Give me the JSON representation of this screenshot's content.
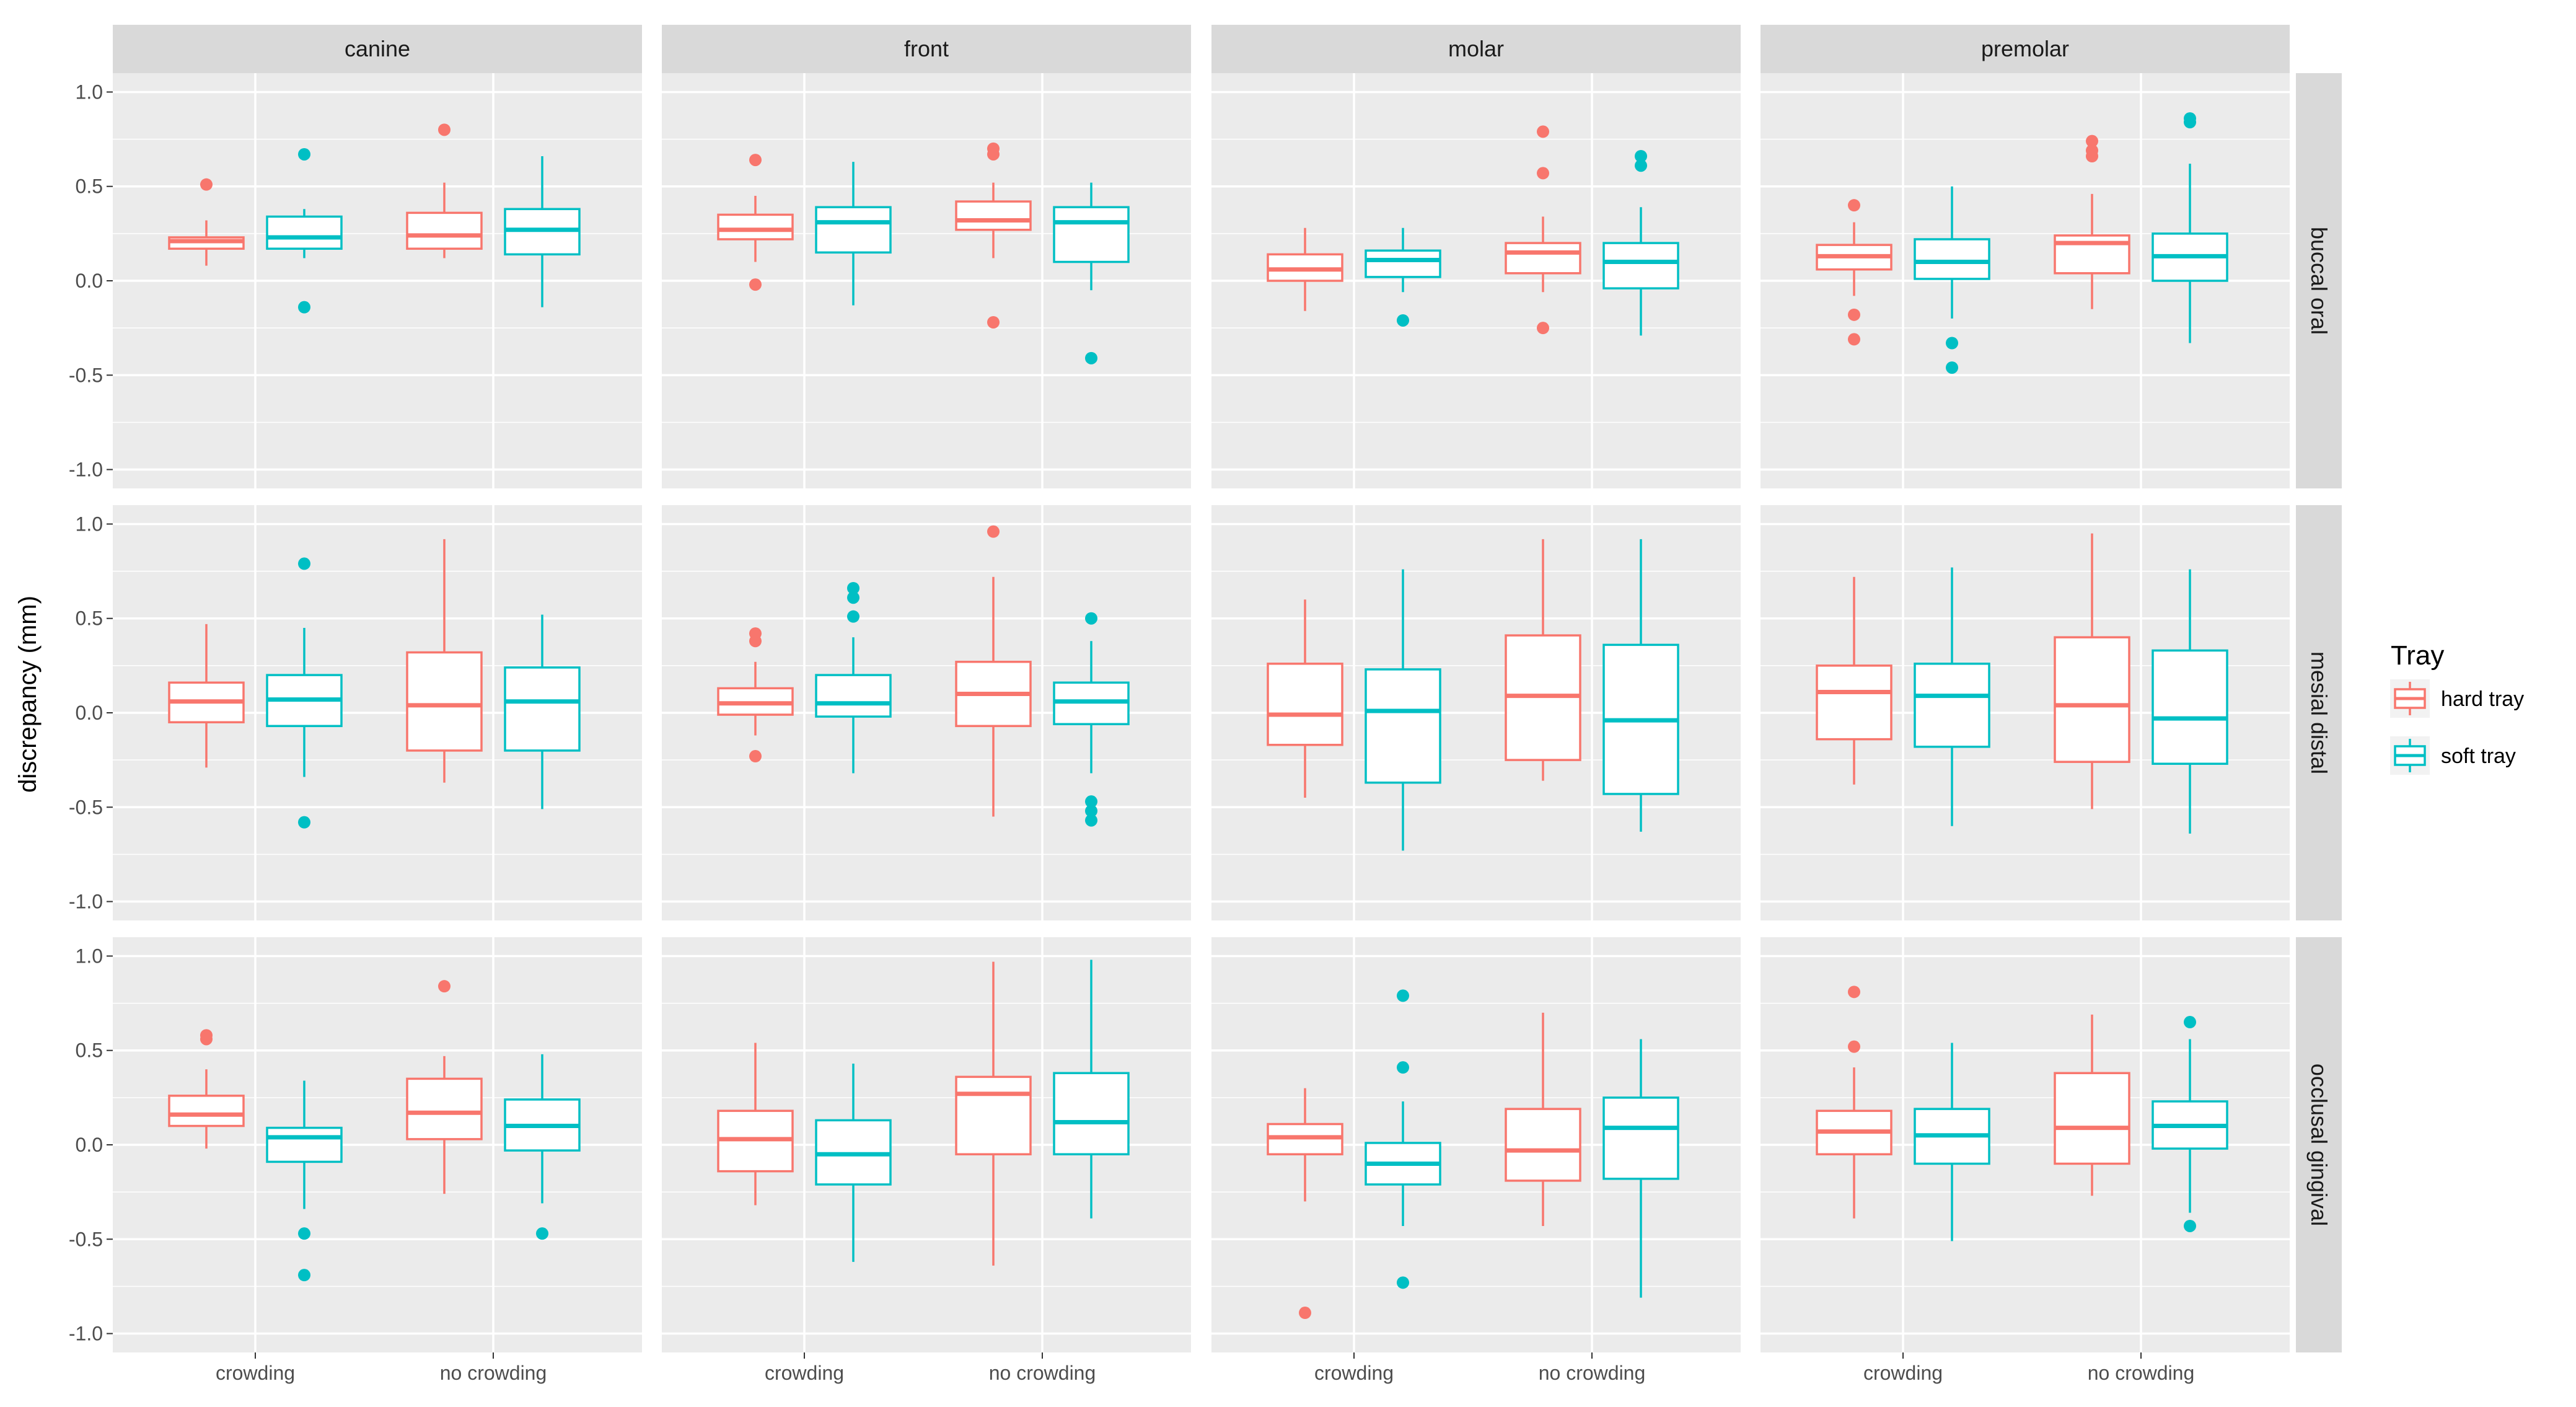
{
  "chart_data": {
    "type": "boxplot",
    "ylabel": "discrepancy (mm)",
    "xlabel": "",
    "ylim": [
      -1.1,
      1.1
    ],
    "yticks": [
      1.0,
      0.5,
      0.0,
      -0.5,
      -1.0
    ],
    "ytick_labels": [
      "1.0",
      "0.5",
      "0.0",
      "-0.5",
      "-1.0"
    ],
    "categories": [
      "crowding",
      "no crowding"
    ],
    "columns": [
      "canine",
      "front",
      "molar",
      "premolar"
    ],
    "rows": [
      "buccal oral",
      "mesial distal",
      "occlusal gingival"
    ],
    "legend": {
      "title": "Tray",
      "position": "right",
      "entries": [
        {
          "name": "hard tray",
          "color": "#F8766D"
        },
        {
          "name": "soft tray",
          "color": "#00BFC4"
        }
      ]
    },
    "colors": {
      "hard tray": "#F8766D",
      "soft tray": "#00BFC4",
      "panel": "#EBEBEB",
      "strip": "#D9D9D9",
      "grid": "#FFFFFF"
    },
    "boxes": [
      {
        "row": 0,
        "col": 0,
        "cat": 0,
        "tray": 0,
        "min": 0.08,
        "q1": 0.17,
        "median": 0.21,
        "q3": 0.23,
        "max": 0.32,
        "outliers": [
          0.51
        ]
      },
      {
        "row": 0,
        "col": 0,
        "cat": 0,
        "tray": 1,
        "min": 0.12,
        "q1": 0.17,
        "median": 0.23,
        "q3": 0.34,
        "max": 0.38,
        "outliers": [
          0.67,
          -0.14
        ]
      },
      {
        "row": 0,
        "col": 0,
        "cat": 1,
        "tray": 0,
        "min": 0.12,
        "q1": 0.17,
        "median": 0.24,
        "q3": 0.36,
        "max": 0.52,
        "outliers": [
          0.8
        ]
      },
      {
        "row": 0,
        "col": 0,
        "cat": 1,
        "tray": 1,
        "min": -0.14,
        "q1": 0.14,
        "median": 0.27,
        "q3": 0.38,
        "max": 0.66,
        "outliers": []
      },
      {
        "row": 0,
        "col": 1,
        "cat": 0,
        "tray": 0,
        "min": 0.1,
        "q1": 0.22,
        "median": 0.27,
        "q3": 0.35,
        "max": 0.45,
        "outliers": [
          0.64,
          -0.02
        ]
      },
      {
        "row": 0,
        "col": 1,
        "cat": 0,
        "tray": 1,
        "min": -0.13,
        "q1": 0.15,
        "median": 0.31,
        "q3": 0.39,
        "max": 0.63,
        "outliers": []
      },
      {
        "row": 0,
        "col": 1,
        "cat": 1,
        "tray": 0,
        "min": 0.12,
        "q1": 0.27,
        "median": 0.32,
        "q3": 0.42,
        "max": 0.52,
        "outliers": [
          0.7,
          0.67,
          -0.22
        ]
      },
      {
        "row": 0,
        "col": 1,
        "cat": 1,
        "tray": 1,
        "min": -0.05,
        "q1": 0.1,
        "median": 0.31,
        "q3": 0.39,
        "max": 0.52,
        "outliers": [
          -0.41
        ]
      },
      {
        "row": 0,
        "col": 2,
        "cat": 0,
        "tray": 0,
        "min": -0.16,
        "q1": 0.0,
        "median": 0.06,
        "q3": 0.14,
        "max": 0.28,
        "outliers": []
      },
      {
        "row": 0,
        "col": 2,
        "cat": 0,
        "tray": 1,
        "min": -0.06,
        "q1": 0.02,
        "median": 0.11,
        "q3": 0.16,
        "max": 0.28,
        "outliers": [
          -0.21
        ]
      },
      {
        "row": 0,
        "col": 2,
        "cat": 1,
        "tray": 0,
        "min": -0.06,
        "q1": 0.04,
        "median": 0.15,
        "q3": 0.2,
        "max": 0.34,
        "outliers": [
          0.79,
          0.57,
          -0.25
        ]
      },
      {
        "row": 0,
        "col": 2,
        "cat": 1,
        "tray": 1,
        "min": -0.29,
        "q1": -0.04,
        "median": 0.1,
        "q3": 0.2,
        "max": 0.39,
        "outliers": [
          0.66,
          0.61
        ]
      },
      {
        "row": 0,
        "col": 3,
        "cat": 0,
        "tray": 0,
        "min": -0.08,
        "q1": 0.06,
        "median": 0.13,
        "q3": 0.19,
        "max": 0.31,
        "outliers": [
          0.4,
          -0.18,
          -0.31
        ]
      },
      {
        "row": 0,
        "col": 3,
        "cat": 0,
        "tray": 1,
        "min": -0.2,
        "q1": 0.01,
        "median": 0.1,
        "q3": 0.22,
        "max": 0.5,
        "outliers": [
          -0.33,
          -0.46
        ]
      },
      {
        "row": 0,
        "col": 3,
        "cat": 1,
        "tray": 0,
        "min": -0.15,
        "q1": 0.04,
        "median": 0.2,
        "q3": 0.24,
        "max": 0.46,
        "outliers": [
          0.74,
          0.69,
          0.66
        ]
      },
      {
        "row": 0,
        "col": 3,
        "cat": 1,
        "tray": 1,
        "min": -0.33,
        "q1": 0.0,
        "median": 0.13,
        "q3": 0.25,
        "max": 0.62,
        "outliers": [
          0.86,
          0.84
        ]
      },
      {
        "row": 1,
        "col": 0,
        "cat": 0,
        "tray": 0,
        "min": -0.29,
        "q1": -0.05,
        "median": 0.06,
        "q3": 0.16,
        "max": 0.47,
        "outliers": []
      },
      {
        "row": 1,
        "col": 0,
        "cat": 0,
        "tray": 1,
        "min": -0.34,
        "q1": -0.07,
        "median": 0.07,
        "q3": 0.2,
        "max": 0.45,
        "outliers": [
          0.79,
          -0.58
        ]
      },
      {
        "row": 1,
        "col": 0,
        "cat": 1,
        "tray": 0,
        "min": -0.37,
        "q1": -0.2,
        "median": 0.04,
        "q3": 0.32,
        "max": 0.92,
        "outliers": []
      },
      {
        "row": 1,
        "col": 0,
        "cat": 1,
        "tray": 1,
        "min": -0.51,
        "q1": -0.2,
        "median": 0.06,
        "q3": 0.24,
        "max": 0.52,
        "outliers": []
      },
      {
        "row": 1,
        "col": 1,
        "cat": 0,
        "tray": 0,
        "min": -0.12,
        "q1": -0.01,
        "median": 0.05,
        "q3": 0.13,
        "max": 0.27,
        "outliers": [
          0.42,
          0.38,
          -0.23
        ]
      },
      {
        "row": 1,
        "col": 1,
        "cat": 0,
        "tray": 1,
        "min": -0.32,
        "q1": -0.02,
        "median": 0.05,
        "q3": 0.2,
        "max": 0.4,
        "outliers": [
          0.66,
          0.61,
          0.51
        ]
      },
      {
        "row": 1,
        "col": 1,
        "cat": 1,
        "tray": 0,
        "min": -0.55,
        "q1": -0.07,
        "median": 0.1,
        "q3": 0.27,
        "max": 0.72,
        "outliers": [
          0.96
        ]
      },
      {
        "row": 1,
        "col": 1,
        "cat": 1,
        "tray": 1,
        "min": -0.32,
        "q1": -0.06,
        "median": 0.06,
        "q3": 0.16,
        "max": 0.38,
        "outliers": [
          0.5,
          -0.47,
          -0.52,
          -0.57
        ]
      },
      {
        "row": 1,
        "col": 2,
        "cat": 0,
        "tray": 0,
        "min": -0.45,
        "q1": -0.17,
        "median": -0.01,
        "q3": 0.26,
        "max": 0.6,
        "outliers": []
      },
      {
        "row": 1,
        "col": 2,
        "cat": 0,
        "tray": 1,
        "min": -0.73,
        "q1": -0.37,
        "median": 0.01,
        "q3": 0.23,
        "max": 0.76,
        "outliers": []
      },
      {
        "row": 1,
        "col": 2,
        "cat": 1,
        "tray": 0,
        "min": -0.36,
        "q1": -0.25,
        "median": 0.09,
        "q3": 0.41,
        "max": 0.92,
        "outliers": []
      },
      {
        "row": 1,
        "col": 2,
        "cat": 1,
        "tray": 1,
        "min": -0.63,
        "q1": -0.43,
        "median": -0.04,
        "q3": 0.36,
        "max": 0.92,
        "outliers": []
      },
      {
        "row": 1,
        "col": 3,
        "cat": 0,
        "tray": 0,
        "min": -0.38,
        "q1": -0.14,
        "median": 0.11,
        "q3": 0.25,
        "max": 0.72,
        "outliers": []
      },
      {
        "row": 1,
        "col": 3,
        "cat": 0,
        "tray": 1,
        "min": -0.6,
        "q1": -0.18,
        "median": 0.09,
        "q3": 0.26,
        "max": 0.77,
        "outliers": []
      },
      {
        "row": 1,
        "col": 3,
        "cat": 1,
        "tray": 0,
        "min": -0.51,
        "q1": -0.26,
        "median": 0.04,
        "q3": 0.4,
        "max": 0.95,
        "outliers": []
      },
      {
        "row": 1,
        "col": 3,
        "cat": 1,
        "tray": 1,
        "min": -0.64,
        "q1": -0.27,
        "median": -0.03,
        "q3": 0.33,
        "max": 0.76,
        "outliers": []
      },
      {
        "row": 2,
        "col": 0,
        "cat": 0,
        "tray": 0,
        "min": -0.02,
        "q1": 0.1,
        "median": 0.16,
        "q3": 0.26,
        "max": 0.4,
        "outliers": [
          0.58,
          0.56
        ]
      },
      {
        "row": 2,
        "col": 0,
        "cat": 0,
        "tray": 1,
        "min": -0.34,
        "q1": -0.09,
        "median": 0.04,
        "q3": 0.09,
        "max": 0.34,
        "outliers": [
          -0.47,
          -0.69
        ]
      },
      {
        "row": 2,
        "col": 0,
        "cat": 1,
        "tray": 0,
        "min": -0.26,
        "q1": 0.03,
        "median": 0.17,
        "q3": 0.35,
        "max": 0.47,
        "outliers": [
          0.84
        ]
      },
      {
        "row": 2,
        "col": 0,
        "cat": 1,
        "tray": 1,
        "min": -0.31,
        "q1": -0.03,
        "median": 0.1,
        "q3": 0.24,
        "max": 0.48,
        "outliers": [
          -0.47
        ]
      },
      {
        "row": 2,
        "col": 1,
        "cat": 0,
        "tray": 0,
        "min": -0.32,
        "q1": -0.14,
        "median": 0.03,
        "q3": 0.18,
        "max": 0.54,
        "outliers": []
      },
      {
        "row": 2,
        "col": 1,
        "cat": 0,
        "tray": 1,
        "min": -0.62,
        "q1": -0.21,
        "median": -0.05,
        "q3": 0.13,
        "max": 0.43,
        "outliers": []
      },
      {
        "row": 2,
        "col": 1,
        "cat": 1,
        "tray": 0,
        "min": -0.64,
        "q1": -0.05,
        "median": 0.27,
        "q3": 0.36,
        "max": 0.97,
        "outliers": []
      },
      {
        "row": 2,
        "col": 1,
        "cat": 1,
        "tray": 1,
        "min": -0.39,
        "q1": -0.05,
        "median": 0.12,
        "q3": 0.38,
        "max": 0.98,
        "outliers": []
      },
      {
        "row": 2,
        "col": 2,
        "cat": 0,
        "tray": 0,
        "min": -0.3,
        "q1": -0.05,
        "median": 0.04,
        "q3": 0.11,
        "max": 0.3,
        "outliers": [
          -0.89
        ]
      },
      {
        "row": 2,
        "col": 2,
        "cat": 0,
        "tray": 1,
        "min": -0.43,
        "q1": -0.21,
        "median": -0.1,
        "q3": 0.01,
        "max": 0.23,
        "outliers": [
          0.79,
          0.41,
          -0.73
        ]
      },
      {
        "row": 2,
        "col": 2,
        "cat": 1,
        "tray": 0,
        "min": -0.43,
        "q1": -0.19,
        "median": -0.03,
        "q3": 0.19,
        "max": 0.7,
        "outliers": []
      },
      {
        "row": 2,
        "col": 2,
        "cat": 1,
        "tray": 1,
        "min": -0.81,
        "q1": -0.18,
        "median": 0.09,
        "q3": 0.25,
        "max": 0.56,
        "outliers": []
      },
      {
        "row": 2,
        "col": 3,
        "cat": 0,
        "tray": 0,
        "min": -0.39,
        "q1": -0.05,
        "median": 0.07,
        "q3": 0.18,
        "max": 0.41,
        "outliers": [
          0.81,
          0.52
        ]
      },
      {
        "row": 2,
        "col": 3,
        "cat": 0,
        "tray": 1,
        "min": -0.51,
        "q1": -0.1,
        "median": 0.05,
        "q3": 0.19,
        "max": 0.54,
        "outliers": []
      },
      {
        "row": 2,
        "col": 3,
        "cat": 1,
        "tray": 0,
        "min": -0.27,
        "q1": -0.1,
        "median": 0.09,
        "q3": 0.38,
        "max": 0.69,
        "outliers": []
      },
      {
        "row": 2,
        "col": 3,
        "cat": 1,
        "tray": 1,
        "min": -0.36,
        "q1": -0.02,
        "median": 0.1,
        "q3": 0.23,
        "max": 0.56,
        "outliers": [
          0.65,
          -0.43
        ]
      }
    ]
  }
}
